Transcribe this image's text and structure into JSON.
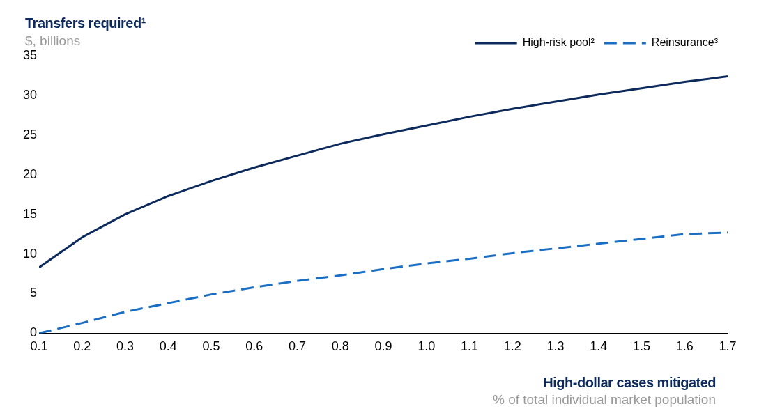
{
  "chart_data": {
    "type": "line",
    "title": "Transfers required¹",
    "subtitle": "$, billions",
    "xlabel": "High-dollar cases mitigated",
    "annotations": [
      "% of total individual market population"
    ],
    "x": [
      0.1,
      0.2,
      0.3,
      0.4,
      0.5,
      0.6,
      0.7,
      0.8,
      0.9,
      1.0,
      1.1,
      1.2,
      1.3,
      1.4,
      1.5,
      1.6,
      1.7
    ],
    "series": [
      {
        "name": "High-risk pool²",
        "color": "#0d2a5c",
        "line_style": "solid",
        "values": [
          8.3,
          12.1,
          15.0,
          17.3,
          19.2,
          20.9,
          22.4,
          23.9,
          25.1,
          26.2,
          27.3,
          28.3,
          29.2,
          30.1,
          30.9,
          31.7,
          32.4
        ]
      },
      {
        "name": "Reinsurance³",
        "color": "#1a6fc4",
        "line_style": "dashed",
        "values": [
          0,
          1.3,
          2.7,
          3.8,
          4.9,
          5.8,
          6.6,
          7.3,
          8.1,
          8.8,
          9.4,
          10.1,
          10.7,
          11.3,
          11.9,
          12.5,
          12.7
        ]
      }
    ],
    "xlim": [
      0.1,
      1.7
    ],
    "xticks": [
      0.1,
      0.2,
      0.3,
      0.4,
      0.5,
      0.6,
      0.7,
      0.8,
      0.9,
      {
        "value": 1,
        "label": "1.0"
      },
      1.1,
      1.2,
      1.3,
      1.4,
      1.5,
      1.6,
      1.7
    ],
    "ylim": [
      0,
      35
    ],
    "yticks": [
      0,
      5,
      10,
      15,
      20,
      25,
      30,
      35
    ],
    "grid": false,
    "legend": "top right",
    "marker": "none"
  }
}
